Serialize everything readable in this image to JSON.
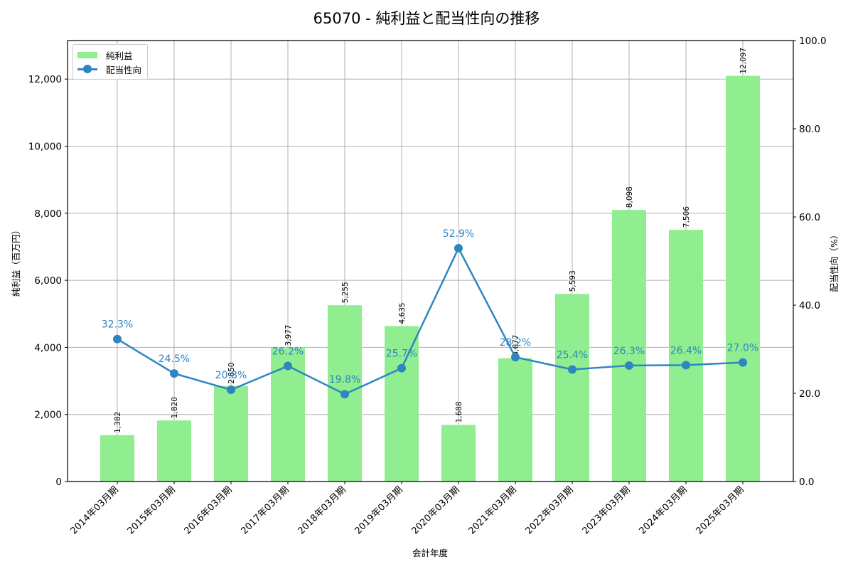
{
  "title": "65070 - 純利益と配当性向の推移",
  "legend": {
    "bar_label": "純利益",
    "line_label": "配当性向"
  },
  "axes": {
    "xlabel": "会計年度",
    "ylabel_left": "純利益（百万円）",
    "ylabel_right": "配当性向（%）",
    "left_ticks": [
      "0",
      "2,000",
      "4,000",
      "6,000",
      "8,000",
      "10,000",
      "12,000"
    ],
    "right_ticks": [
      "0.0",
      "20.0",
      "40.0",
      "60.0",
      "80.0",
      "100.0"
    ]
  },
  "colors": {
    "bar": "#90ee90",
    "line": "#2e86c1",
    "grid": "#b0b0b0"
  },
  "chart_data": {
    "type": "bar+line",
    "title": "65070 - 純利益と配当性向の推移",
    "xlabel": "会計年度",
    "ylabel": "純利益（百万円）",
    "ylabel_right": "配当性向（%）",
    "ylim": [
      0,
      13150
    ],
    "ylim_right": [
      0,
      100
    ],
    "grid": true,
    "legend_position": "upper left",
    "categories": [
      "2014年03月期",
      "2015年03月期",
      "2016年03月期",
      "2017年03月期",
      "2018年03月期",
      "2019年03月期",
      "2020年03月期",
      "2021年03月期",
      "2022年03月期",
      "2023年03月期",
      "2024年03月期",
      "2025年03月期"
    ],
    "series": [
      {
        "name": "純利益",
        "type": "bar",
        "axis": "left",
        "values": [
          1382,
          1820,
          2850,
          3977,
          5255,
          4635,
          1688,
          3677,
          5593,
          8098,
          7506,
          12097
        ],
        "labels": [
          "1,382",
          "1,820",
          "2,850",
          "3,977",
          "5,255",
          "4,635",
          "1,688",
          "3,677",
          "5,593",
          "8,098",
          "7,506",
          "12,097"
        ]
      },
      {
        "name": "配当性向",
        "type": "line",
        "axis": "right",
        "values": [
          32.3,
          24.5,
          20.8,
          26.2,
          19.8,
          25.7,
          52.9,
          28.2,
          25.4,
          26.3,
          26.4,
          27.0
        ],
        "labels": [
          "32.3%",
          "24.5%",
          "20.8%",
          "26.2%",
          "19.8%",
          "25.7%",
          "52.9%",
          "28.2%",
          "25.4%",
          "26.3%",
          "26.4%",
          "27.0%"
        ]
      }
    ]
  }
}
